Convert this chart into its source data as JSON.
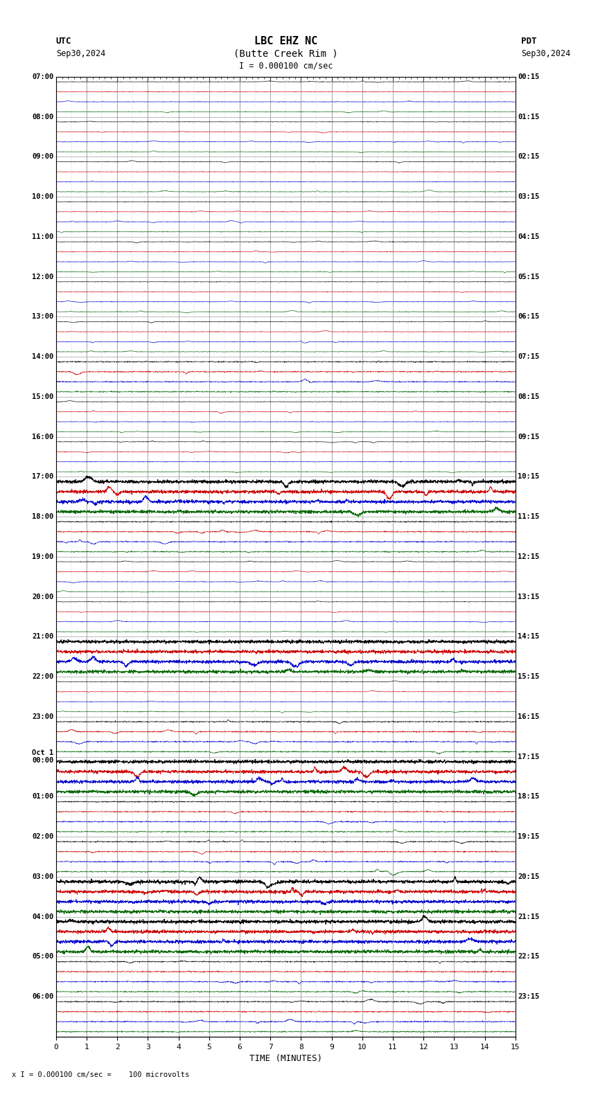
{
  "title_line1": "LBC EHZ NC",
  "title_line2": "(Butte Creek Rim )",
  "scale_label": "I = 0.000100 cm/sec",
  "left_label_top": "UTC",
  "left_label_date": "Sep30,2024",
  "right_label_top": "PDT",
  "right_label_date": "Sep30,2024",
  "bottom_note": "x I = 0.000100 cm/sec =    100 microvolts",
  "xlabel": "TIME (MINUTES)",
  "xticks": [
    0,
    1,
    2,
    3,
    4,
    5,
    6,
    7,
    8,
    9,
    10,
    11,
    12,
    13,
    14,
    15
  ],
  "xmin": 0,
  "xmax": 15,
  "left_times": [
    "07:00",
    "08:00",
    "09:00",
    "10:00",
    "11:00",
    "12:00",
    "13:00",
    "14:00",
    "15:00",
    "16:00",
    "17:00",
    "18:00",
    "19:00",
    "20:00",
    "21:00",
    "22:00",
    "23:00",
    "Oct 1\n00:00",
    "01:00",
    "02:00",
    "03:00",
    "04:00",
    "05:00",
    "06:00"
  ],
  "right_times": [
    "00:15",
    "01:15",
    "02:15",
    "03:15",
    "04:15",
    "05:15",
    "06:15",
    "07:15",
    "08:15",
    "09:15",
    "10:15",
    "11:15",
    "12:15",
    "13:15",
    "14:15",
    "15:15",
    "16:15",
    "17:15",
    "18:15",
    "19:15",
    "20:15",
    "21:15",
    "22:15",
    "23:15"
  ],
  "n_rows": 24,
  "n_lines_per_row": 4,
  "bg_color": "#ffffff",
  "line_color_black": "#000000",
  "line_color_red": "#cc0000",
  "line_color_blue": "#0000cc",
  "line_color_green": "#006600",
  "grid_color": "#aaaaaa",
  "separator_color": "#888888",
  "seed": 42,
  "large_signal_rows": [
    10,
    14,
    17,
    20,
    21
  ],
  "medium_signal_rows": [
    7,
    11,
    16,
    18,
    19,
    22,
    23
  ]
}
